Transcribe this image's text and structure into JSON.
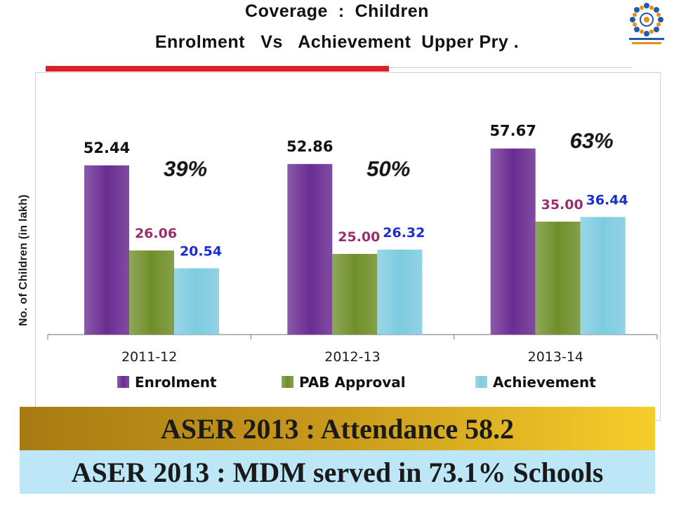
{
  "slide": {
    "title_line1": "Coverage  :  Children",
    "title_line2": "Enrolment   Vs   Achievement  Upper Pry .",
    "banner1": "ASER 2013 : Attendance 58.2",
    "banner2": "ASER 2013 : MDM served in 73.1% Schools"
  },
  "chart_data": {
    "type": "bar",
    "title": "",
    "xlabel": "",
    "ylabel": "No. of Children (in lakh)",
    "categories": [
      "2011-12",
      "2012-13",
      "2013-14"
    ],
    "series": [
      {
        "name": "Enrolment",
        "values": [
          52.44,
          52.86,
          57.67
        ],
        "color": "#6a2c91",
        "label_color": "#111111"
      },
      {
        "name": "PAB Approval",
        "values": [
          26.06,
          25.0,
          35.0
        ],
        "color": "#6f8f2a",
        "label_color": "#9b2f6e"
      },
      {
        "name": "Achievement",
        "values": [
          20.54,
          26.32,
          36.44
        ],
        "color": "#7ecbe0",
        "label_color": "#1a2fd0"
      }
    ],
    "value_labels": [
      [
        "52.44",
        "26.06",
        "20.54"
      ],
      [
        "52.86",
        "25.00",
        "26.32"
      ],
      [
        "57.67",
        "35.00",
        "36.44"
      ]
    ],
    "percent_annotations": [
      "39%",
      "50%",
      "63%"
    ],
    "ylim": [
      0,
      65
    ],
    "grid": false,
    "legend": "bottom",
    "colors": {
      "enrolment": "#6a2c91",
      "pab": "#6f8f2a",
      "achievement": "#7ecbe0",
      "accent_red": "#dd1f26"
    }
  }
}
